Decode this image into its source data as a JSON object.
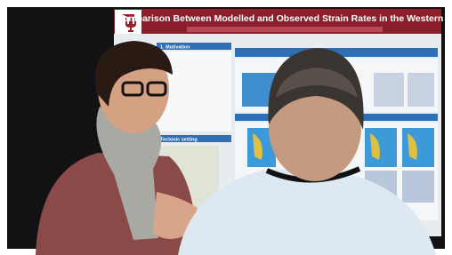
{
  "poster": {
    "title": "Comparison Between Modelled and Observed Strain Rates in the Western U.S.",
    "sections": [
      "1. Motivation",
      "Tectonic setting"
    ]
  }
}
